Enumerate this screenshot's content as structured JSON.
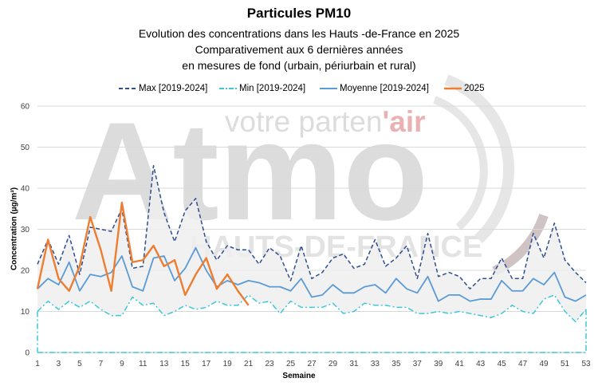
{
  "chart_data": {
    "type": "line",
    "title": "Particules PM10",
    "subtitle_lines": [
      "Evolution des concentrations dans les Hauts -de-France en 2025",
      "Comparativement aux 6 dernières années",
      "en mesures de fond (urbain, périurbain et rural)"
    ],
    "xlabel": "Semaine",
    "ylabel": "Concentration (µg/m³)",
    "xlim": [
      1,
      53
    ],
    "ylim": [
      0,
      60
    ],
    "x_ticks": [
      1,
      3,
      5,
      7,
      9,
      11,
      13,
      15,
      17,
      19,
      21,
      23,
      25,
      27,
      29,
      31,
      33,
      35,
      37,
      39,
      41,
      43,
      45,
      47,
      49,
      51,
      53
    ],
    "y_ticks": [
      0,
      10,
      20,
      30,
      40,
      50,
      60
    ],
    "grid": "horizontal",
    "legend_position": "top",
    "band_color": "#efefef",
    "series": [
      {
        "name": "Max [2019-2024]",
        "style": "dashed",
        "color": "#2e4e8f",
        "x": [
          1,
          2,
          3,
          4,
          5,
          6,
          7,
          8,
          9,
          10,
          11,
          12,
          13,
          14,
          15,
          16,
          17,
          18,
          19,
          20,
          21,
          22,
          23,
          24,
          25,
          26,
          27,
          28,
          29,
          30,
          31,
          32,
          33,
          34,
          35,
          36,
          37,
          38,
          39,
          40,
          41,
          42,
          43,
          44,
          45,
          46,
          47,
          48,
          49,
          50,
          51,
          52,
          53
        ],
        "values": [
          21.5,
          27.5,
          21.5,
          28.5,
          19,
          30.5,
          30,
          29.5,
          35,
          20.5,
          21,
          45.5,
          34,
          27,
          34.5,
          37.5,
          27,
          22.5,
          26,
          25,
          25,
          21.5,
          25.5,
          23.5,
          17.5,
          26,
          18,
          19.5,
          23,
          24,
          20.5,
          21.5,
          27.5,
          21,
          23,
          26,
          18,
          29,
          18.5,
          19.5,
          18.5,
          15.5,
          18,
          18,
          23,
          18,
          18,
          29,
          23,
          31.5,
          22.5,
          19.5,
          17
        ]
      },
      {
        "name": "Min [2019-2024]",
        "style": "dash-dot",
        "color": "#3ec7d8",
        "x": [
          1,
          2,
          3,
          4,
          5,
          6,
          7,
          8,
          9,
          10,
          11,
          12,
          13,
          14,
          15,
          16,
          17,
          18,
          19,
          20,
          21,
          22,
          23,
          24,
          25,
          26,
          27,
          28,
          29,
          30,
          31,
          32,
          33,
          34,
          35,
          36,
          37,
          38,
          39,
          40,
          41,
          42,
          43,
          44,
          45,
          46,
          47,
          48,
          49,
          50,
          51,
          52,
          53
        ],
        "values": [
          10,
          12.5,
          10.5,
          12.5,
          11,
          12.5,
          10.5,
          9,
          9,
          13.5,
          11.5,
          12,
          9,
          10,
          11.5,
          10.5,
          11,
          12.5,
          11.5,
          11.5,
          14,
          12,
          12.5,
          9.5,
          12.5,
          11,
          11,
          11,
          12,
          9.5,
          10,
          12,
          11.5,
          11.5,
          11,
          11,
          9.5,
          9.5,
          10,
          9.5,
          10,
          9.5,
          9,
          8.5,
          9.5,
          11.5,
          10,
          9.5,
          13,
          14,
          10,
          7.5,
          10.5
        ]
      },
      {
        "name": "Moyenne [2019-2024]",
        "style": "solid",
        "color": "#5b9bd5",
        "x": [
          1,
          2,
          3,
          4,
          5,
          6,
          7,
          8,
          9,
          10,
          11,
          12,
          13,
          14,
          15,
          16,
          17,
          18,
          19,
          20,
          21,
          22,
          23,
          24,
          25,
          26,
          27,
          28,
          29,
          30,
          31,
          32,
          33,
          34,
          35,
          36,
          37,
          38,
          39,
          40,
          41,
          42,
          43,
          44,
          45,
          46,
          47,
          48,
          49,
          50,
          51,
          52,
          53
        ],
        "values": [
          15.5,
          18,
          16.5,
          22,
          15,
          19,
          18.5,
          19.5,
          23.5,
          16,
          15,
          23,
          23.5,
          17.5,
          20.5,
          25.5,
          20,
          16,
          17.5,
          16.5,
          17.5,
          17,
          16,
          16,
          15,
          18,
          13.5,
          14,
          16.5,
          14.5,
          14.5,
          16,
          16.5,
          14.5,
          18,
          15.5,
          14.5,
          18.5,
          12.5,
          14,
          14,
          12.5,
          13,
          13,
          17.5,
          15,
          15,
          18,
          16.5,
          19.5,
          13.5,
          12.5,
          14
        ]
      },
      {
        "name": "2025",
        "style": "solid",
        "color": "#ed7d31",
        "x": [
          1,
          2,
          3,
          4,
          5,
          6,
          7,
          8,
          9,
          10,
          11,
          12,
          13,
          14,
          15,
          16,
          17,
          18,
          19,
          20,
          21
        ],
        "values": [
          15.5,
          27.5,
          18,
          15,
          21,
          33,
          25,
          15,
          36.5,
          22,
          22.5,
          26,
          21,
          22.5,
          14,
          19,
          23,
          15.5,
          19,
          15,
          11.5
        ]
      }
    ],
    "watermark": {
      "brand": "Atmo",
      "tagline": "votre parten",
      "tagline_bold": "air",
      "region": "HAUTS-DE-FRANCE"
    }
  }
}
